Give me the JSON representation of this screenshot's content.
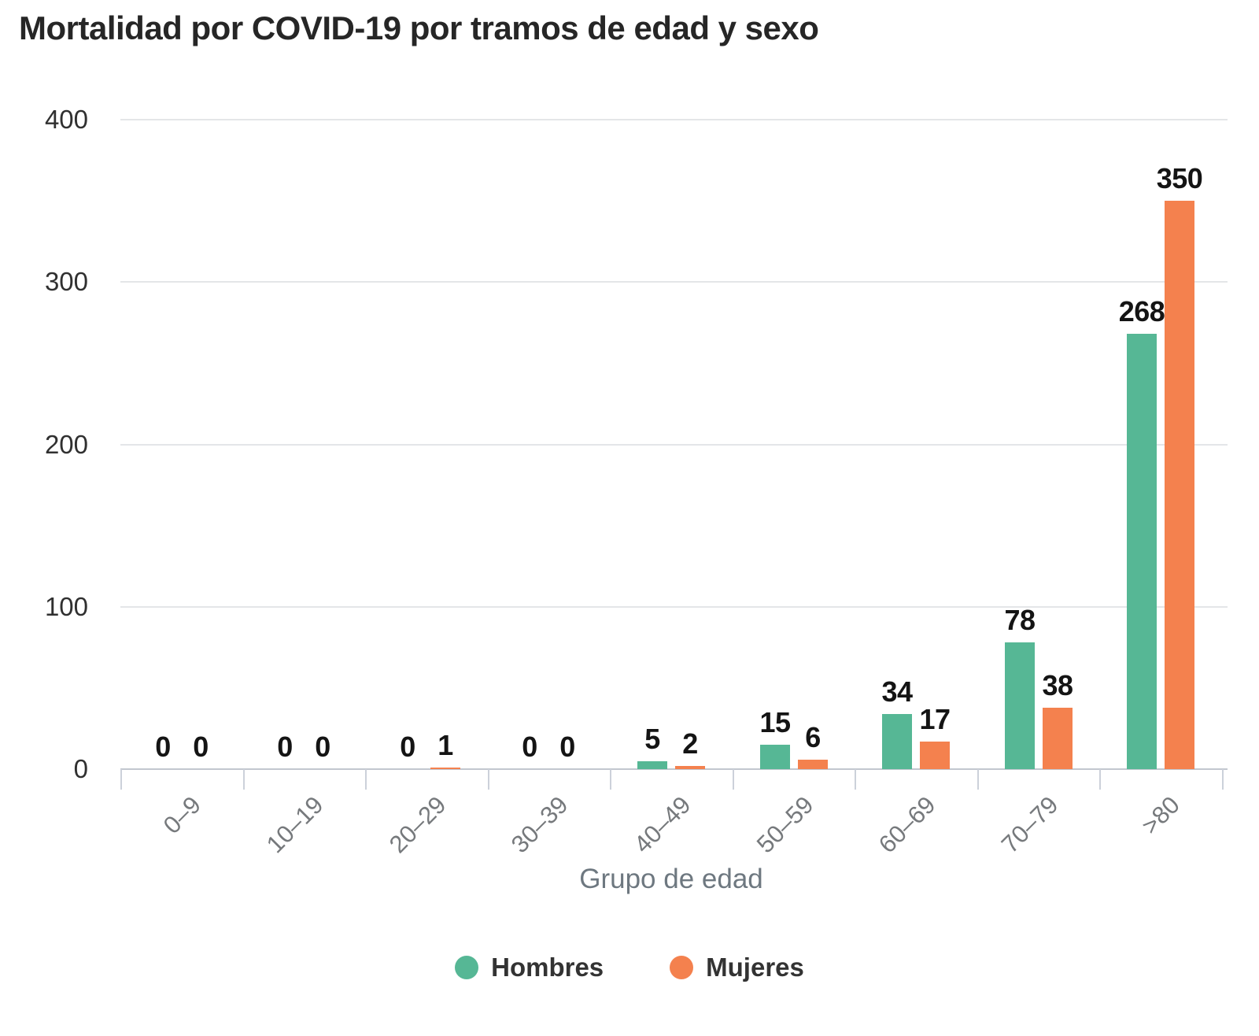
{
  "title": "Mortalidad por COVID-19 por tramos de edad y sexo",
  "chart_data": {
    "type": "bar",
    "title": "Mortalidad por COVID-19 por tramos de edad y sexo",
    "categories": [
      "0–9",
      "10–19",
      "20–29",
      "30–39",
      "40–49",
      "50–59",
      "60–69",
      "70–79",
      ">80"
    ],
    "series": [
      {
        "name": "Hombres",
        "color": "#56b795",
        "values": [
          0,
          0,
          0,
          0,
          5,
          15,
          34,
          78,
          268
        ]
      },
      {
        "name": "Mujeres",
        "color": "#f4814e",
        "values": [
          0,
          0,
          1,
          0,
          2,
          6,
          17,
          38,
          350
        ]
      }
    ],
    "xlabel": "Grupo de edad",
    "ylabel": "",
    "ylim": [
      0,
      400
    ],
    "yticks": [
      0,
      100,
      200,
      300,
      400
    ],
    "grid": true,
    "grid_color": "#e4e6e8",
    "axis_color": "#c2c7cf",
    "data_labels": true,
    "legend_position": "bottom"
  }
}
